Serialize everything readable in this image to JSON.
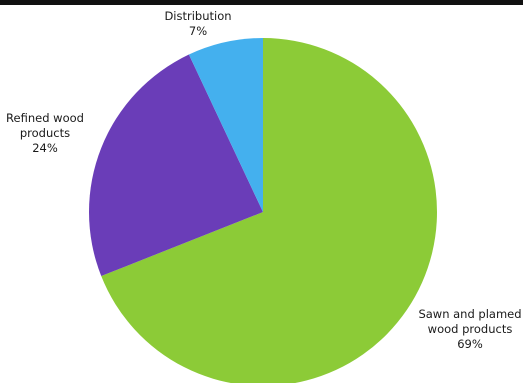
{
  "chart_data": {
    "type": "pie",
    "title": "",
    "slices": [
      {
        "label_lines": [
          "Sawn and plamed",
          "wood products"
        ],
        "value": 69,
        "value_label": "69%",
        "color": "#8ccb37"
      },
      {
        "label_lines": [
          "Refined wood",
          "products"
        ],
        "value": 24,
        "value_label": "24%",
        "color": "#6a3db8"
      },
      {
        "label_lines": [
          "Distribution"
        ],
        "value": 7,
        "value_label": "7%",
        "color": "#44b0ee"
      }
    ],
    "start_angle_deg": 0,
    "direction": "clockwise"
  }
}
